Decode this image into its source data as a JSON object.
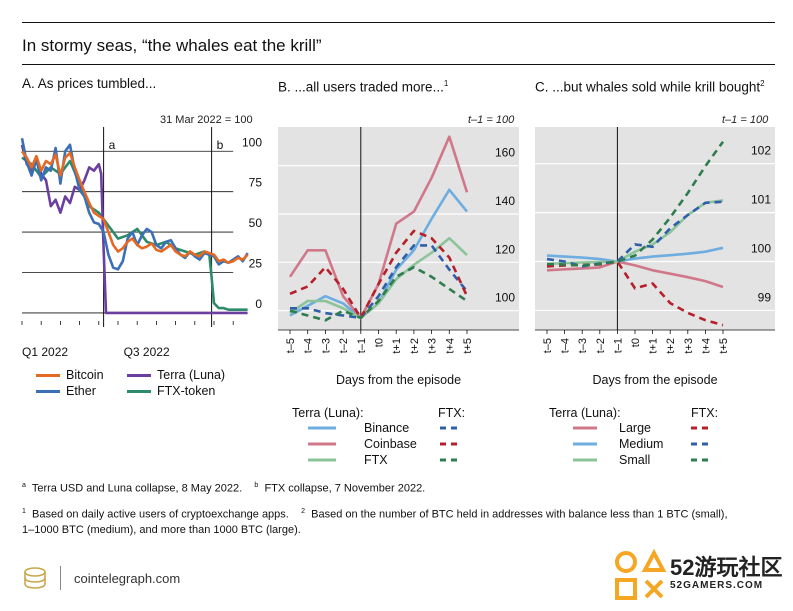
{
  "header": {
    "title": "In stormy seas, “the whales eat the krill”"
  },
  "panels": {
    "a": {
      "title": "A. As prices tumbled...",
      "note": "31 Mar 2022 = 100",
      "vline1": "a",
      "vline2": "b"
    },
    "b": {
      "title": "B. ...all users traded more...",
      "sup": "1",
      "note": "t–1 = 100",
      "xlabel": "Days from the episode"
    },
    "c": {
      "title": "C. ...but whales sold while krill bought",
      "sup": "2",
      "note": "t–1 = 100",
      "xlabel": "Days from the episode"
    }
  },
  "legend_a": {
    "bitcoin": "Bitcoin",
    "ether": "Ether",
    "terra": "Terra (Luna)",
    "ftx_token": "FTX-token"
  },
  "legend_b": {
    "left_head": "Terra (Luna):",
    "right_head": "FTX:",
    "r1": "Binance",
    "r2": "Coinbase",
    "r3": "FTX"
  },
  "legend_c": {
    "left_head": "Terra (Luna):",
    "right_head": "FTX:",
    "r1": "Large",
    "r2": "Medium",
    "r3": "Small"
  },
  "footnotes": {
    "a_mark": "a",
    "a_text": "Terra USD and Luna collapse, 8 May 2022.",
    "b_mark": "b",
    "b_text": "FTX collapse, 7 November 2022.",
    "n1_mark": "1",
    "n1_text": "Based on daily active users of cryptoexchange apps.",
    "n2_mark": "2",
    "n2_text_1": "Based on the number of BTC held in addresses with balance less than 1 BTC (small),",
    "n2_text_2": "1–1000 BTC (medium), and more than 1000 BTC (large)."
  },
  "brand": {
    "site": "cointelegraph.com"
  },
  "watermark": {
    "big": "52游玩社区",
    "small": "52GAMERS.COM"
  },
  "colors": {
    "bitcoin": "#E46A23",
    "ether": "#3B6FB6",
    "terra": "#6B3FA0",
    "ftx_token": "#2E8B6A",
    "binance": "#6EADE0",
    "coinbase": "#D0788A",
    "ftx": "#8CC49A",
    "binance_dash": "#2F5FA8",
    "coinbase_dash": "#B5202A",
    "ftx_dash": "#2E7D4F",
    "large": "#D0788A",
    "medium": "#6EADE0",
    "small": "#8CC49A",
    "large_dash": "#B5202A",
    "medium_dash": "#2F5FA8",
    "small_dash": "#2E7D4F",
    "panel_bg": "#E3E3E3"
  },
  "chart_data": [
    {
      "type": "line",
      "title": "A. As prices tumbled...",
      "subtitle": "31 Mar 2022 = 100",
      "x_tick_labels": [
        "Q1 2022",
        "Q3 2022"
      ],
      "y_ticks": [
        0,
        25,
        50,
        75,
        100
      ],
      "ylim": [
        -5,
        115
      ],
      "x_index_range": [
        0,
        100
      ],
      "events": [
        {
          "label": "a",
          "x": 34
        },
        {
          "label": "b",
          "x": 79
        }
      ],
      "series": [
        {
          "name": "Bitcoin",
          "x": [
            0,
            2,
            4,
            6,
            8,
            10,
            12,
            14,
            16,
            18,
            20,
            22,
            24,
            26,
            28,
            30,
            32,
            34,
            36,
            38,
            40,
            42,
            44,
            46,
            48,
            50,
            52,
            54,
            56,
            58,
            60,
            62,
            64,
            66,
            68,
            70,
            72,
            74,
            76,
            78,
            80,
            82,
            84,
            86,
            88,
            90,
            92,
            94
          ],
          "y": [
            100,
            96,
            90,
            97,
            88,
            94,
            92,
            98,
            85,
            96,
            99,
            90,
            82,
            75,
            68,
            62,
            60,
            58,
            50,
            42,
            38,
            40,
            44,
            46,
            42,
            40,
            41,
            43,
            39,
            38,
            40,
            42,
            38,
            36,
            35,
            38,
            36,
            35,
            38,
            37,
            36,
            32,
            33,
            31,
            32,
            34,
            33,
            36
          ]
        },
        {
          "name": "Ether",
          "x": [
            0,
            2,
            4,
            6,
            8,
            10,
            12,
            14,
            16,
            18,
            20,
            22,
            24,
            26,
            28,
            30,
            32,
            34,
            36,
            38,
            40,
            42,
            44,
            46,
            48,
            50,
            52,
            54,
            56,
            58,
            60,
            62,
            64,
            66,
            68,
            70,
            72,
            74,
            76,
            78,
            80,
            82,
            84,
            86,
            88,
            90,
            92,
            94
          ],
          "y": [
            108,
            93,
            85,
            95,
            82,
            90,
            88,
            102,
            80,
            100,
            104,
            88,
            76,
            72,
            62,
            56,
            55,
            50,
            36,
            28,
            27,
            32,
            46,
            50,
            42,
            48,
            52,
            50,
            42,
            40,
            44,
            45,
            40,
            36,
            34,
            38,
            35,
            33,
            37,
            36,
            35,
            30,
            32,
            31,
            33,
            35,
            32,
            37
          ]
        },
        {
          "name": "Terra (Luna)",
          "x": [
            0,
            2,
            4,
            6,
            8,
            10,
            12,
            14,
            16,
            18,
            20,
            22,
            24,
            26,
            28,
            30,
            32,
            33,
            34,
            35,
            40,
            50,
            60,
            70,
            80,
            90,
            94
          ],
          "y": [
            104,
            92,
            88,
            96,
            86,
            82,
            66,
            70,
            62,
            72,
            68,
            78,
            76,
            82,
            90,
            88,
            92,
            86,
            40,
            0,
            0,
            0,
            0,
            0,
            0,
            0,
            0
          ]
        },
        {
          "name": "FTX-token",
          "x": [
            0,
            4,
            8,
            12,
            16,
            20,
            24,
            28,
            32,
            36,
            40,
            44,
            48,
            52,
            56,
            60,
            64,
            68,
            72,
            76,
            78,
            79,
            80,
            82,
            84,
            86,
            88,
            90,
            92,
            94
          ],
          "y": [
            96,
            92,
            84,
            90,
            86,
            94,
            80,
            66,
            62,
            54,
            46,
            48,
            52,
            44,
            42,
            44,
            40,
            38,
            36,
            38,
            37,
            22,
            6,
            3,
            3,
            2,
            2,
            2,
            2,
            2
          ]
        }
      ]
    },
    {
      "type": "line",
      "title": "B. ...all users traded more...",
      "subtitle": "t–1 = 100",
      "xlabel": "Days from the episode",
      "categories": [
        "t–5",
        "t–4",
        "t–3",
        "t–2",
        "t–1",
        "t0",
        "t+1",
        "t+2",
        "t+3",
        "t+4",
        "t+5"
      ],
      "y_ticks": [
        100,
        120,
        140,
        160
      ],
      "ylim": [
        92,
        176
      ],
      "series": [
        {
          "name": "Binance",
          "group": "Terra (Luna)",
          "values": [
            98,
            102,
            106,
            103,
            97,
            103,
            117,
            125,
            138,
            150,
            141
          ]
        },
        {
          "name": "Coinbase",
          "group": "Terra (Luna)",
          "values": [
            114,
            125,
            125,
            106,
            97,
            111,
            136,
            141,
            155,
            172,
            149
          ]
        },
        {
          "name": "FTX",
          "group": "Terra (Luna)",
          "values": [
            99,
            104,
            104,
            101,
            97,
            103,
            113,
            119,
            124,
            130,
            123
          ]
        },
        {
          "name": "Binance",
          "group": "FTX",
          "values": [
            101,
            101,
            99,
            98,
            97,
            106,
            118,
            127,
            127,
            117,
            108
          ]
        },
        {
          "name": "Coinbase",
          "group": "FTX",
          "values": [
            107,
            110,
            118,
            109,
            97,
            111,
            124,
            133,
            130,
            122,
            106
          ]
        },
        {
          "name": "FTX",
          "group": "FTX",
          "values": [
            100,
            98,
            96,
            100,
            97,
            104,
            114,
            118,
            114,
            109,
            104
          ]
        }
      ]
    },
    {
      "type": "line",
      "title": "C. ...but whales sold while krill bought",
      "subtitle": "t–1 = 100",
      "xlabel": "Days from the episode",
      "categories": [
        "t–5",
        "t–4",
        "t–3",
        "t–2",
        "t–1",
        "t0",
        "t+1",
        "t+2",
        "t+3",
        "t+4",
        "t+5"
      ],
      "y_ticks": [
        99,
        100,
        101,
        102
      ],
      "ylim": [
        98.6,
        102.75
      ],
      "series": [
        {
          "name": "Large",
          "group": "Terra (Luna)",
          "values": [
            99.82,
            99.84,
            99.86,
            99.88,
            100.0,
            99.92,
            99.82,
            99.75,
            99.68,
            99.6,
            99.48
          ]
        },
        {
          "name": "Medium",
          "group": "Terra (Luna)",
          "values": [
            100.12,
            100.1,
            100.08,
            100.05,
            100.0,
            100.06,
            100.1,
            100.13,
            100.16,
            100.2,
            100.28
          ]
        },
        {
          "name": "Small",
          "group": "Terra (Luna)",
          "values": [
            99.95,
            99.97,
            99.98,
            99.99,
            100.0,
            100.2,
            100.35,
            100.6,
            100.95,
            101.2,
            101.25
          ]
        },
        {
          "name": "Large",
          "group": "FTX",
          "values": [
            99.9,
            99.92,
            99.93,
            99.94,
            100.0,
            99.45,
            99.55,
            99.15,
            98.95,
            98.8,
            98.7
          ]
        },
        {
          "name": "Medium",
          "group": "FTX",
          "values": [
            100.05,
            100.0,
            99.9,
            99.96,
            100.0,
            100.35,
            100.3,
            100.68,
            100.95,
            101.2,
            101.22
          ]
        },
        {
          "name": "Small",
          "group": "FTX",
          "values": [
            99.95,
            99.94,
            99.92,
            99.95,
            100.0,
            100.12,
            100.45,
            100.9,
            101.4,
            101.95,
            102.45
          ]
        }
      ]
    }
  ]
}
